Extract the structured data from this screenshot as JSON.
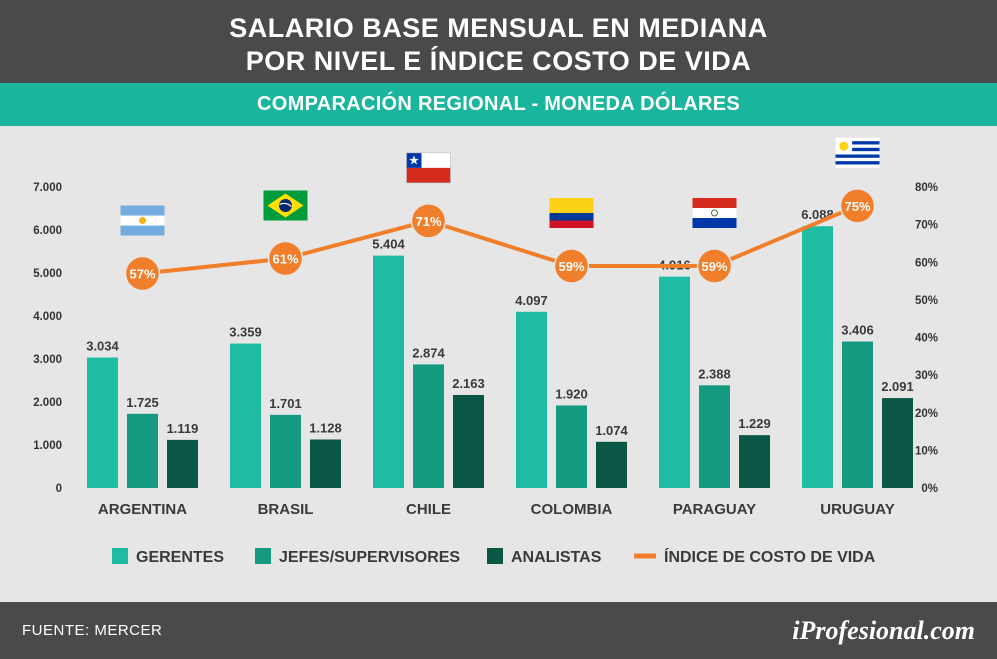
{
  "header": {
    "title_line1": "SALARIO BASE MENSUAL EN MEDIANA",
    "title_line2": "POR NIVEL E ÍNDICE COSTO DE VIDA",
    "subtitle": "COMPARACIÓN REGIONAL - MONEDA DÓLARES"
  },
  "footer": {
    "source": "FUENTE:  MERCER",
    "logo": "iProfesional.com"
  },
  "chart_data": {
    "type": "bar",
    "categories": [
      "ARGENTINA",
      "BRASIL",
      "CHILE",
      "COLOMBIA",
      "PARAGUAY",
      "URUGUAY"
    ],
    "series": [
      {
        "name": "GERENTES",
        "color": "#1ebca3",
        "values": [
          3034,
          3359,
          5404,
          4097,
          4916,
          6088
        ],
        "labels": [
          "3.034",
          "3.359",
          "5.404",
          "4.097",
          "4.916",
          "6.088"
        ]
      },
      {
        "name": "JEFES/SUPERVISORES",
        "color": "#139a81",
        "values": [
          1725,
          1701,
          2874,
          1920,
          2388,
          3406
        ],
        "labels": [
          "1.725",
          "1.701",
          "2.874",
          "1.920",
          "2.388",
          "3.406"
        ]
      },
      {
        "name": "ANALISTAS",
        "color": "#0b5746",
        "values": [
          1119,
          1128,
          2163,
          1074,
          1229,
          2091
        ],
        "labels": [
          "1.119",
          "1.128",
          "2.163",
          "1.074",
          "1.229",
          "2.091"
        ]
      }
    ],
    "line_series": {
      "name": "ÍNDICE DE COSTO DE VIDA",
      "color": "#f07e2a",
      "values": [
        57,
        61,
        71,
        59,
        59,
        75
      ],
      "labels": [
        "57%",
        "61%",
        "71%",
        "59%",
        "59%",
        "75%"
      ]
    },
    "y_left": {
      "min": 0,
      "max": 7000,
      "ticks": [
        0,
        1000,
        2000,
        3000,
        4000,
        5000,
        6000,
        7000
      ],
      "tick_labels": [
        "0",
        "1.000",
        "2.000",
        "3.000",
        "4.000",
        "5.000",
        "6.000",
        "7.000"
      ]
    },
    "y_right": {
      "min": 0,
      "max": 80,
      "ticks": [
        0,
        10,
        20,
        30,
        40,
        50,
        60,
        70,
        80
      ],
      "tick_labels": [
        "0%",
        "10%",
        "20%",
        "30%",
        "40%",
        "50%",
        "60%",
        "70%",
        "80%"
      ]
    },
    "flags": [
      "argentina-flag",
      "brazil-flag",
      "chile-flag",
      "colombia-flag",
      "paraguay-flag",
      "uruguay-flag"
    ],
    "legend_position": "bottom",
    "grid": false
  }
}
